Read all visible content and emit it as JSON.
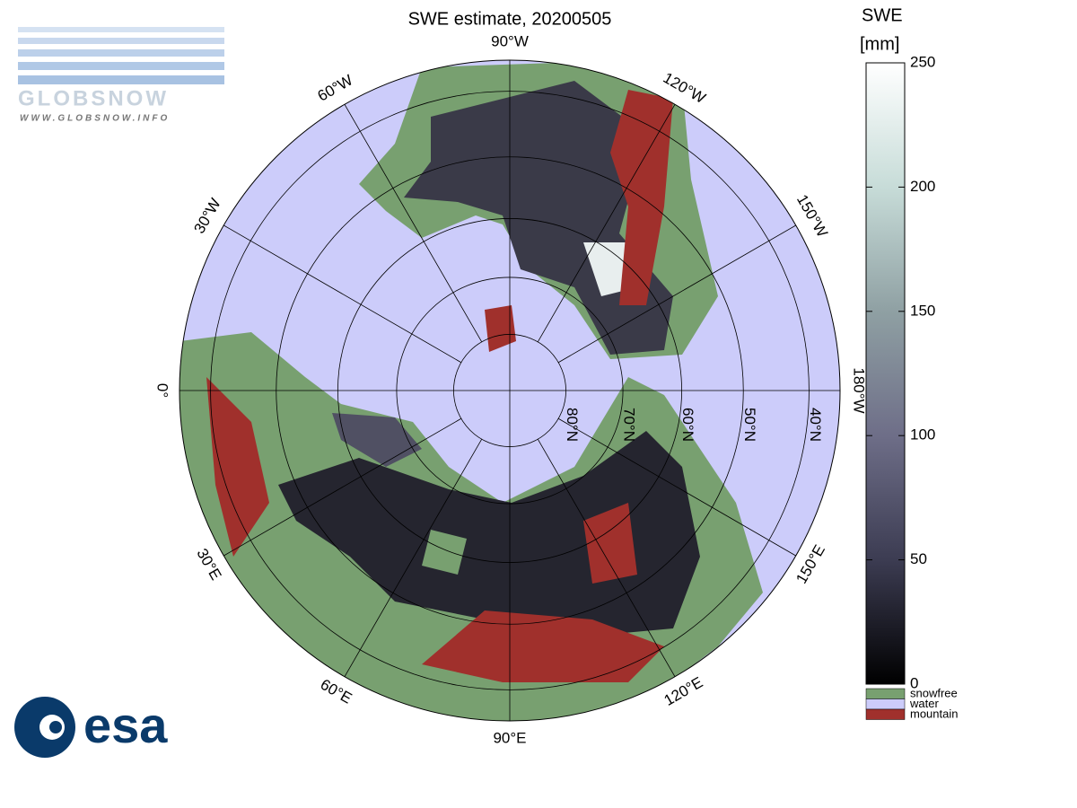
{
  "title": "SWE estimate, 20200505",
  "logos": {
    "globsnow": "GLOBSNOW",
    "url": "WWW.GLOBSNOW.INFO",
    "esa": "esa"
  },
  "colorbar": {
    "label": [
      "SWE",
      "[mm]"
    ],
    "ylim": [
      0,
      250
    ],
    "yticks": [
      0,
      50,
      100,
      150,
      200,
      250
    ],
    "colors": [
      "#000000",
      "#3c3c52",
      "#6e6e88",
      "#8fa0a3",
      "#c7dcd8",
      "#ffffff"
    ]
  },
  "legend": [
    {
      "name": "snowfree",
      "color": "#78a070"
    },
    {
      "name": "water",
      "color": "#ccccfa"
    },
    {
      "name": "mountain",
      "color": "#a0302c"
    }
  ],
  "graticule": {
    "meridians": [
      {
        "lon": -90,
        "label": "90°W"
      },
      {
        "lon": -60,
        "label": "60°W"
      },
      {
        "lon": -30,
        "label": "30°W"
      },
      {
        "lon": 0,
        "label": "0°"
      },
      {
        "lon": 30,
        "label": "30°E"
      },
      {
        "lon": 60,
        "label": "60°E"
      },
      {
        "lon": 90,
        "label": "90°E"
      },
      {
        "lon": 120,
        "label": "120°E"
      },
      {
        "lon": 150,
        "label": "150°E"
      },
      {
        "lon": 180,
        "label": "180°W"
      },
      {
        "lon": -150,
        "label": "150°W"
      },
      {
        "lon": -120,
        "label": "120°W"
      }
    ],
    "parallels": [
      {
        "lat": 80,
        "label": "80°N"
      },
      {
        "lat": 70,
        "label": "70°N"
      },
      {
        "lat": 60,
        "label": "60°N"
      },
      {
        "lat": 50,
        "label": "50°N"
      },
      {
        "lat": 40,
        "label": "40°N"
      }
    ]
  }
}
